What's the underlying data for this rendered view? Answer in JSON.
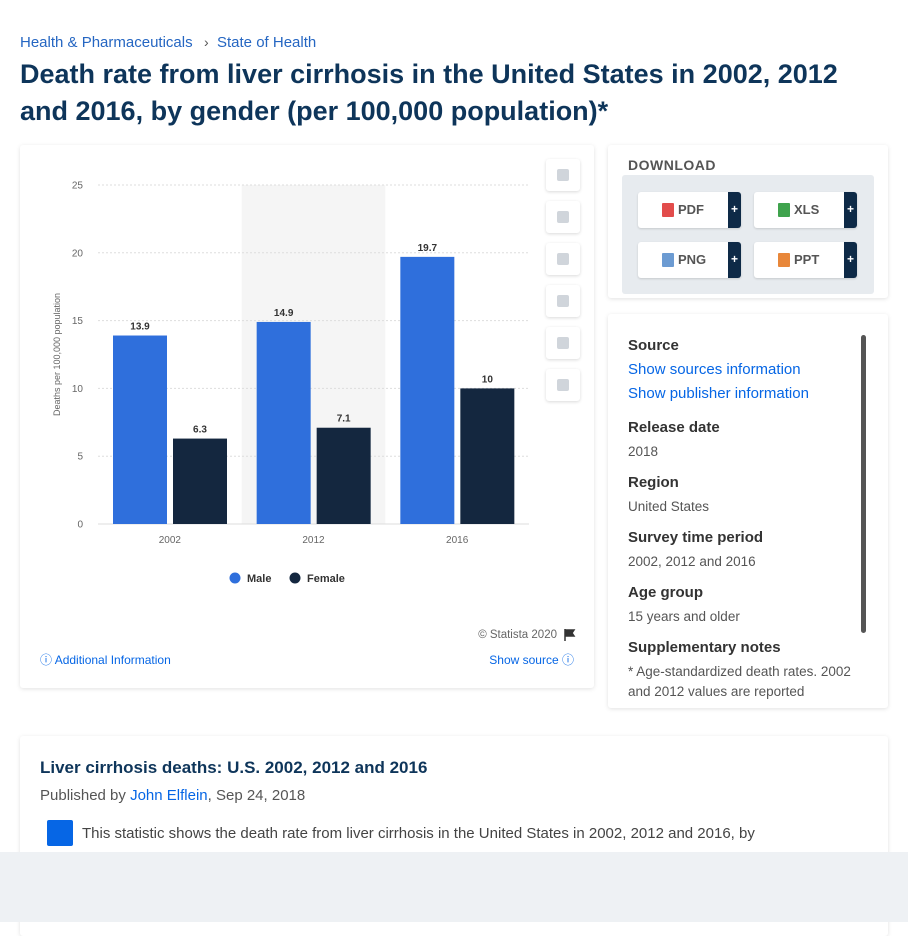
{
  "breadcrumb": [
    "Health & Pharmaceuticals",
    "State of Health"
  ],
  "title": "Death rate from liver cirrhosis in the United States in 2002, 2012 and 2016, by gender (per 100,000 population)*",
  "chart_data": {
    "type": "bar",
    "y_label": "Deaths per 100,000 population",
    "categories": [
      "2002",
      "2012",
      "2016"
    ],
    "series": [
      {
        "name": "Male",
        "color": "#2f6fdc",
        "values": [
          13.9,
          14.9,
          19.7
        ]
      },
      {
        "name": "Female",
        "color": "#14273f",
        "values": [
          6.3,
          7.1,
          10
        ]
      }
    ],
    "ylim": [
      0,
      25
    ],
    "yticks": [
      0,
      5,
      10,
      15,
      20,
      25
    ],
    "grid": true,
    "legend": "bottom",
    "copyright": "© Statista 2020"
  },
  "chart_links": {
    "additional": "Additional Information",
    "show_source": "Show source"
  },
  "download": {
    "heading": "DOWNLOAD",
    "more": "+",
    "buttons": [
      "PDF",
      "XLS",
      "PNG",
      "PPT"
    ]
  },
  "details": {
    "source": {
      "label": "Source",
      "links": [
        "Show sources information",
        "Show publisher information"
      ]
    },
    "items": [
      {
        "label": "Release date",
        "value": "2018"
      },
      {
        "label": "Region",
        "value": "United States"
      },
      {
        "label": "Survey time period",
        "value": "2002, 2012 and 2016"
      },
      {
        "label": "Age group",
        "value": "15 years and older"
      },
      {
        "label": "Supplementary notes",
        "value": "* Age-standardized death rates. 2002 and 2012 values are reported"
      }
    ]
  },
  "article": {
    "title": "Liver cirrhosis deaths: U.S. 2002, 2012 and 2016",
    "published_prefix": "Published by",
    "author": "John Elflein",
    "date": ", Sep 24, 2018",
    "text": "This statistic shows the death rate from liver cirrhosis in the United States in 2002, 2012 and 2016, by"
  }
}
